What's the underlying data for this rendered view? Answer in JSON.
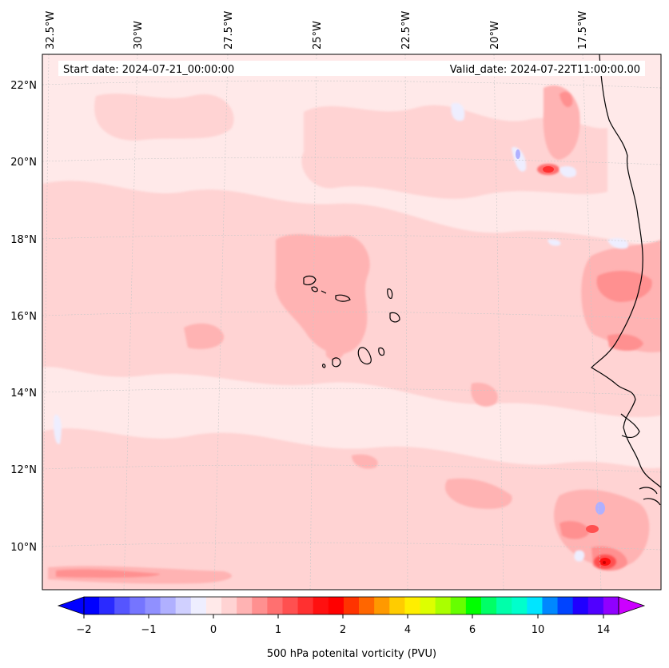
{
  "map": {
    "start_date": "Start date: 2024-07-21_00:00:00",
    "valid_date": "Valid_date: 2024-07-22T11:00:00.00",
    "lon_labels": [
      "32.5°W",
      "30°W",
      "27.5°W",
      "25°W",
      "22.5°W",
      "20°W",
      "17.5°W"
    ],
    "lat_labels": [
      "22°N",
      "20°N",
      "18°N",
      "16°N",
      "14°N",
      "12°N",
      "10°N"
    ]
  },
  "colorbar": {
    "label": "500 hPa potenital vorticity (PVU)",
    "tick_labels": [
      "−2",
      "−1",
      "0",
      "1",
      "2",
      "4",
      "6",
      "10",
      "14"
    ],
    "colors": [
      "#0000ff",
      "#2a2aff",
      "#5555ff",
      "#7575ff",
      "#9090ff",
      "#b0b0ff",
      "#d0d0ff",
      "#eeeeff",
      "#ffe9e9",
      "#ffd3d3",
      "#ffb3b3",
      "#ff9090",
      "#ff7070",
      "#ff5050",
      "#ff3030",
      "#ff1010",
      "#ff0000",
      "#ff3300",
      "#ff6600",
      "#ff9900",
      "#ffcc00",
      "#ffee00",
      "#ddff00",
      "#aaff00",
      "#66ff00",
      "#00ff00",
      "#00ff66",
      "#00ffaa",
      "#00ffcc",
      "#00e5ff",
      "#0088ff",
      "#0044ff",
      "#2000ff",
      "#5000ff",
      "#9000ff"
    ],
    "under_color": "#0000ff",
    "over_color": "#cc00ff"
  }
}
